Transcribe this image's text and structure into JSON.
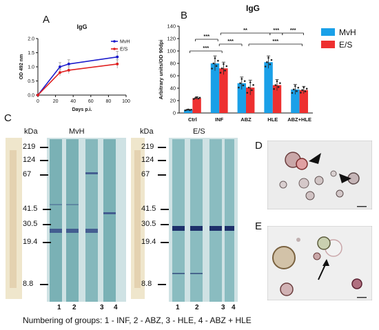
{
  "panels": {
    "A": "A",
    "B": "B",
    "C": "C",
    "D": "D",
    "E": "E"
  },
  "chart_data": [
    {
      "type": "line",
      "title": "IgG",
      "xlabel": "Days p.i.",
      "ylabel": "OD 492 nm",
      "xlim": [
        0,
        100
      ],
      "ylim": [
        0,
        2.0
      ],
      "xticks": [
        "0",
        "20",
        "40",
        "60",
        "80",
        "100"
      ],
      "yticks": [
        "0.0",
        "0.5",
        "1.0",
        "1.5",
        "2.0"
      ],
      "legend_position": "top-right",
      "series": [
        {
          "name": "MvH",
          "color": "#1c1ccc",
          "x": [
            0,
            25,
            35,
            90
          ],
          "y": [
            0,
            1.0,
            1.1,
            1.35
          ],
          "err": [
            0,
            0.15,
            0.15,
            0.2
          ]
        },
        {
          "name": "E/S",
          "color": "#e02020",
          "x": [
            0,
            25,
            35,
            90
          ],
          "y": [
            0,
            0.8,
            0.88,
            1.1
          ],
          "err": [
            0,
            0.12,
            0.12,
            0.15
          ]
        }
      ]
    },
    {
      "type": "bar",
      "title": "IgG",
      "ylabel": "Arbitrary units/OD 90dpi",
      "ylim": [
        0,
        140
      ],
      "yticks": [
        "0",
        "20",
        "40",
        "60",
        "80",
        "100",
        "120",
        "140"
      ],
      "categories": [
        "Ctrl",
        "INF",
        "ABZ",
        "HLE",
        "ABZ+HLE"
      ],
      "legend_position": "top-right",
      "series": [
        {
          "name": "MvH",
          "color": "#1aa0e8",
          "values": [
            5,
            80,
            48,
            82,
            38
          ],
          "err": [
            1,
            12,
            10,
            10,
            8
          ]
        },
        {
          "name": "E/S",
          "color": "#ee3030",
          "values": [
            24,
            72,
            41,
            45,
            37
          ],
          "err": [
            2,
            10,
            12,
            9,
            6
          ]
        }
      ],
      "significance": [
        "***",
        "***",
        "***",
        "**",
        "***",
        "***",
        "***"
      ]
    }
  ],
  "blot": {
    "kda_label": "kDa",
    "left_title": "MvH",
    "right_title": "E/S",
    "markers": [
      "219",
      "124",
      "67",
      "41.5",
      "30.5",
      "19.4",
      "8.8"
    ],
    "lanes_left": [
      "1",
      "2",
      "3",
      "4"
    ],
    "lanes_right": [
      "1",
      "2",
      "3",
      "4"
    ]
  },
  "caption": "Numbering of groups: 1 - INF, 2 - ABZ, 3 - HLE, 4 - ABZ + HLE"
}
